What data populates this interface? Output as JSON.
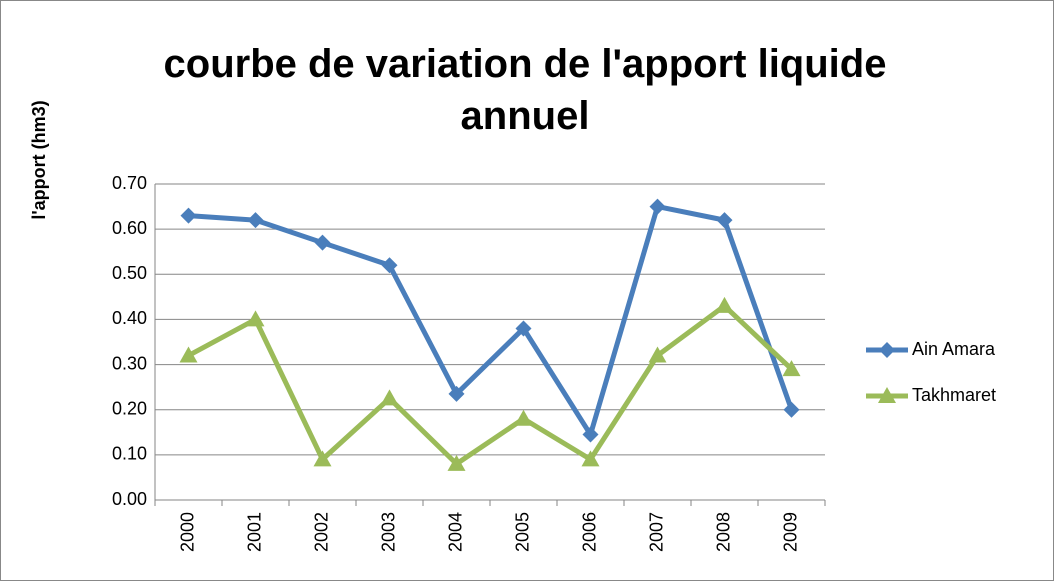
{
  "chart_data": {
    "type": "line",
    "title": "courbe de variation de l'apport  liquide annuel",
    "y_label": "l'apport (hm3)",
    "categories": [
      "2000",
      "2001",
      "2002",
      "2003",
      "2004",
      "2005",
      "2006",
      "2007",
      "2008",
      "2009"
    ],
    "series": [
      {
        "name": "Ain Amara",
        "color": "#4a7ebb",
        "marker": "diamond",
        "values": [
          0.63,
          0.62,
          0.57,
          0.52,
          0.235,
          0.38,
          0.145,
          0.65,
          0.62,
          0.2
        ]
      },
      {
        "name": "Takhmaret",
        "color": "#9bbb59",
        "marker": "triangle",
        "values": [
          0.32,
          0.4,
          0.09,
          0.225,
          0.08,
          0.18,
          0.09,
          0.32,
          0.43,
          0.29
        ]
      }
    ],
    "ylim": [
      0,
      0.7
    ],
    "yticks": [
      {
        "value": 0,
        "label": "0.00"
      },
      {
        "value": 0.1,
        "label": "0.10"
      },
      {
        "value": 0.2,
        "label": "0.20"
      },
      {
        "value": 0.3,
        "label": "0.30"
      },
      {
        "value": 0.4,
        "label": "0.40"
      },
      {
        "value": 0.5,
        "label": "0.50"
      },
      {
        "value": 0.6,
        "label": "0.60"
      },
      {
        "value": 0.7,
        "label": "0.70"
      }
    ],
    "grid": true,
    "legend": "right"
  }
}
